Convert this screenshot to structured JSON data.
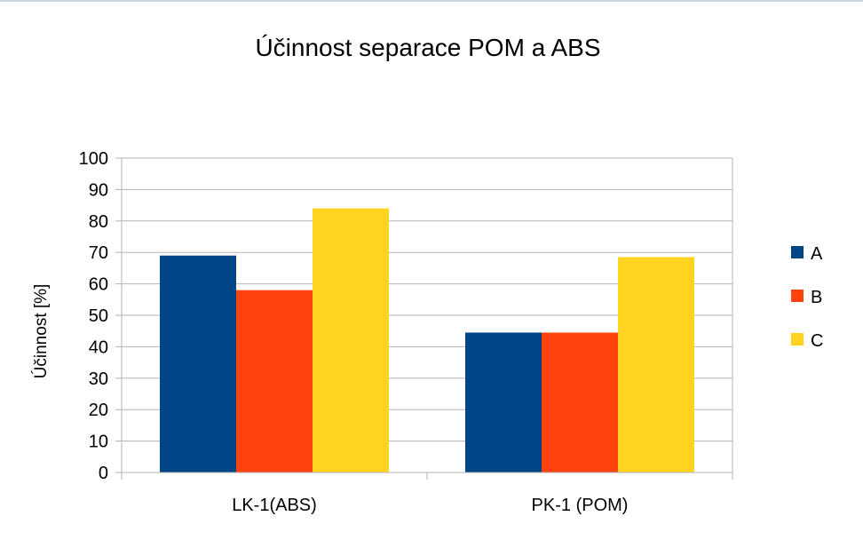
{
  "chart_data": {
    "type": "bar",
    "title": "Účinnost separace POM a ABS",
    "xlabel": "",
    "ylabel": "Účinnost [%]",
    "ylim": [
      0,
      100
    ],
    "yticks": [
      0,
      10,
      20,
      30,
      40,
      50,
      60,
      70,
      80,
      90,
      100
    ],
    "grid": true,
    "legend_position": "right",
    "categories": [
      "LK-1(ABS)",
      "PK-1 (POM)"
    ],
    "series": [
      {
        "name": "A",
        "color": "#004586",
        "values": [
          69,
          44.5
        ]
      },
      {
        "name": "B",
        "color": "#ff420e",
        "values": [
          58,
          44.5
        ]
      },
      {
        "name": "C",
        "color": "#ffd320",
        "values": [
          84,
          68.5
        ]
      }
    ]
  }
}
